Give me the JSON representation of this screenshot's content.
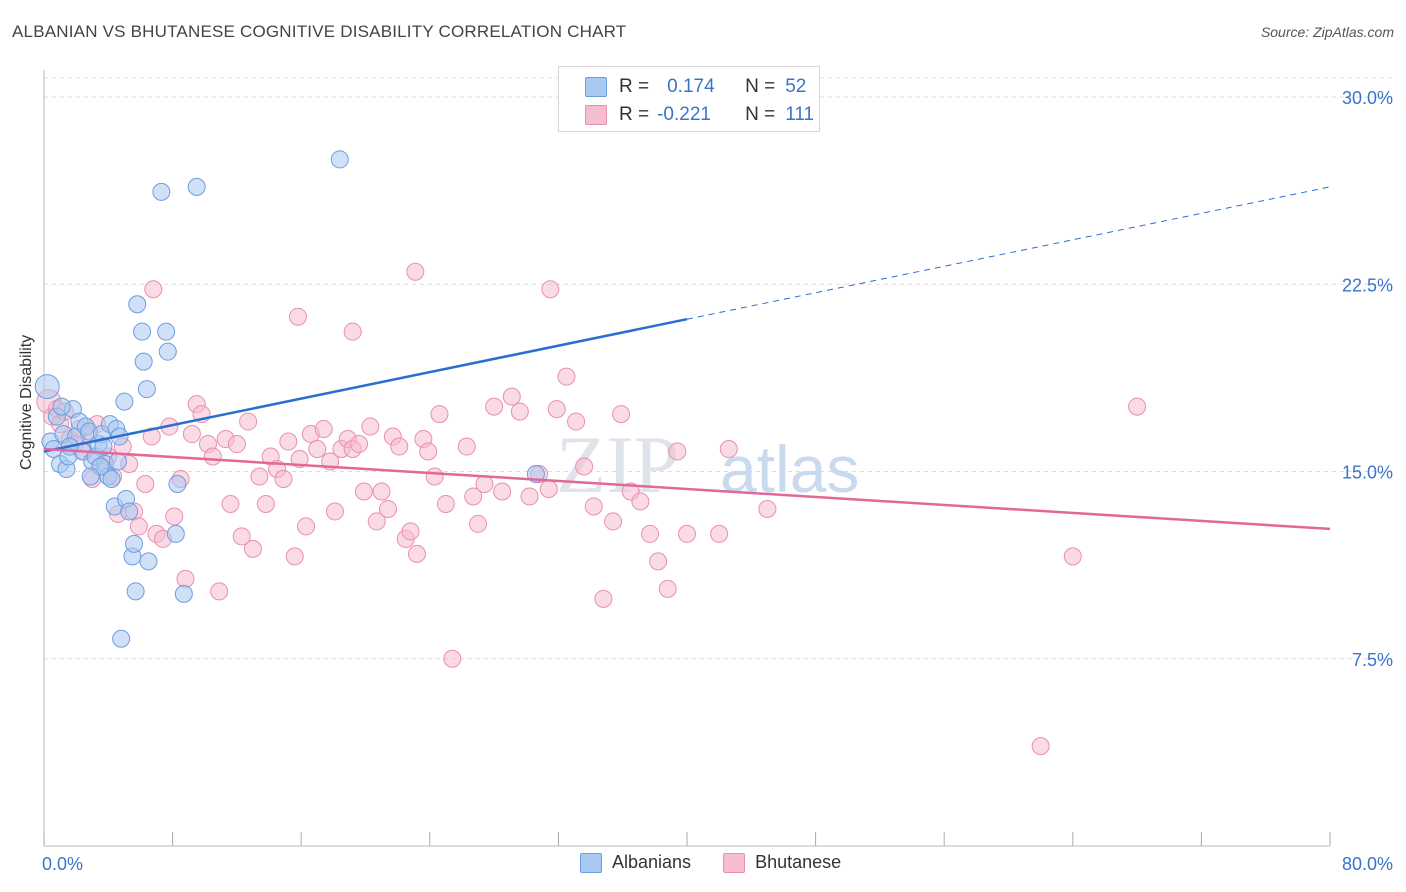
{
  "title": "ALBANIAN VS BHUTANESE COGNITIVE DISABILITY CORRELATION CHART",
  "source": "Source: ZipAtlas.com",
  "watermark": {
    "zip": "ZIP",
    "atlas": "atlas"
  },
  "colors": {
    "blue_fill": "#aac9f0",
    "blue_stroke": "#6d9de0",
    "blue_line": "#2a6fcf",
    "pink_fill": "#f6bcd0",
    "pink_stroke": "#e98fb0",
    "pink_line": "#e2689a",
    "tick_label": "#3a74c9",
    "grid": "#dcdcdc"
  },
  "legend": {
    "rows": [
      {
        "r_label": "R =",
        "r_value": "0.174",
        "n_label": "N =",
        "n_value": "52"
      },
      {
        "r_label": "R =",
        "r_value": "-0.221",
        "n_label": "N =",
        "n_value": "111"
      }
    ]
  },
  "bottom_legend": {
    "albanians": "Albanians",
    "bhutanese": "Bhutanese"
  },
  "chart_data": {
    "type": "scatter",
    "title": "ALBANIAN VS BHUTANESE COGNITIVE DISABILITY CORRELATION CHART",
    "xlabel": "",
    "ylabel": "Cognitive Disability",
    "xlim": [
      0,
      80
    ],
    "ylim": [
      0,
      31
    ],
    "y_ticks": [
      7.5,
      15.0,
      22.5,
      30.0
    ],
    "y_tick_labels": [
      "7.5%",
      "15.0%",
      "22.5%",
      "30.0%"
    ],
    "x_tick_labels": {
      "min": "0.0%",
      "max": "80.0%"
    },
    "x_tick_positions": [
      0,
      8,
      16,
      24,
      32,
      40,
      48,
      56,
      64,
      72,
      80
    ],
    "series": [
      {
        "name": "Albanians",
        "color": "blue",
        "r": 0.174,
        "n": 52,
        "trend": {
          "x_start": 0,
          "y_start": 15.8,
          "x_solid_end": 40,
          "y_solid_end": 21.1,
          "x_end": 80,
          "y_end": 26.4
        },
        "points": [
          [
            0.2,
            18.4
          ],
          [
            0.4,
            16.2
          ],
          [
            0.6,
            15.9
          ],
          [
            0.8,
            17.2
          ],
          [
            1.0,
            15.3
          ],
          [
            1.2,
            16.5
          ],
          [
            1.4,
            15.1
          ],
          [
            1.5,
            15.6
          ],
          [
            1.8,
            17.5
          ],
          [
            2.0,
            16.4
          ],
          [
            2.2,
            17.0
          ],
          [
            2.4,
            15.8
          ],
          [
            2.6,
            16.8
          ],
          [
            2.8,
            16.6
          ],
          [
            3.0,
            15.4
          ],
          [
            3.2,
            15.6
          ],
          [
            3.4,
            16.1
          ],
          [
            3.6,
            16.5
          ],
          [
            3.8,
            15.3
          ],
          [
            4.0,
            14.8
          ],
          [
            4.1,
            16.9
          ],
          [
            4.2,
            14.7
          ],
          [
            4.4,
            13.6
          ],
          [
            4.5,
            16.7
          ],
          [
            4.7,
            16.4
          ],
          [
            4.8,
            8.3
          ],
          [
            5.0,
            17.8
          ],
          [
            5.1,
            13.9
          ],
          [
            5.3,
            13.4
          ],
          [
            5.5,
            11.6
          ],
          [
            5.6,
            12.1
          ],
          [
            5.7,
            10.2
          ],
          [
            5.8,
            21.7
          ],
          [
            6.1,
            20.6
          ],
          [
            6.2,
            19.4
          ],
          [
            6.4,
            18.3
          ],
          [
            6.5,
            11.4
          ],
          [
            7.3,
            26.2
          ],
          [
            7.6,
            20.6
          ],
          [
            7.7,
            19.8
          ],
          [
            8.2,
            12.5
          ],
          [
            8.3,
            14.5
          ],
          [
            8.7,
            10.1
          ],
          [
            9.5,
            26.4
          ],
          [
            18.4,
            27.5
          ],
          [
            30.6,
            14.9
          ],
          [
            1.1,
            17.6
          ],
          [
            3.5,
            15.2
          ],
          [
            2.9,
            14.8
          ],
          [
            1.6,
            16.0
          ],
          [
            4.6,
            15.4
          ],
          [
            3.7,
            16.0
          ]
        ]
      },
      {
        "name": "Bhutanese",
        "color": "pink",
        "r": -0.221,
        "n": 111,
        "trend": {
          "x_start": 0,
          "y_start": 15.9,
          "x_end": 80,
          "y_end": 12.7
        },
        "points": [
          [
            0.3,
            17.8
          ],
          [
            0.5,
            17.2
          ],
          [
            0.8,
            17.5
          ],
          [
            1.0,
            16.9
          ],
          [
            1.3,
            17.4
          ],
          [
            1.6,
            16.3
          ],
          [
            1.9,
            16.1
          ],
          [
            2.2,
            16.7
          ],
          [
            2.5,
            15.8
          ],
          [
            2.8,
            16.5
          ],
          [
            3.0,
            14.7
          ],
          [
            3.3,
            16.9
          ],
          [
            3.6,
            15.2
          ],
          [
            4.0,
            15.6
          ],
          [
            4.3,
            14.8
          ],
          [
            4.6,
            13.3
          ],
          [
            4.9,
            16.0
          ],
          [
            5.3,
            15.3
          ],
          [
            5.6,
            13.4
          ],
          [
            5.9,
            12.8
          ],
          [
            6.3,
            14.5
          ],
          [
            6.7,
            16.4
          ],
          [
            7.0,
            12.5
          ],
          [
            7.4,
            12.3
          ],
          [
            7.8,
            16.8
          ],
          [
            8.1,
            13.2
          ],
          [
            8.5,
            14.7
          ],
          [
            8.8,
            10.7
          ],
          [
            9.2,
            16.5
          ],
          [
            9.5,
            17.7
          ],
          [
            9.8,
            17.3
          ],
          [
            10.2,
            16.1
          ],
          [
            10.5,
            15.6
          ],
          [
            10.9,
            10.2
          ],
          [
            11.3,
            16.3
          ],
          [
            11.6,
            13.7
          ],
          [
            12.0,
            16.1
          ],
          [
            12.3,
            12.4
          ],
          [
            12.7,
            17.0
          ],
          [
            13.0,
            11.9
          ],
          [
            13.4,
            14.8
          ],
          [
            13.8,
            13.7
          ],
          [
            14.1,
            15.6
          ],
          [
            14.5,
            15.1
          ],
          [
            14.9,
            14.7
          ],
          [
            15.2,
            16.2
          ],
          [
            15.6,
            11.6
          ],
          [
            15.9,
            15.5
          ],
          [
            16.3,
            12.8
          ],
          [
            16.6,
            16.5
          ],
          [
            17.0,
            15.9
          ],
          [
            17.4,
            16.7
          ],
          [
            17.8,
            15.4
          ],
          [
            18.1,
            13.4
          ],
          [
            18.5,
            15.9
          ],
          [
            18.9,
            16.3
          ],
          [
            19.2,
            15.9
          ],
          [
            19.6,
            16.1
          ],
          [
            19.9,
            14.2
          ],
          [
            20.3,
            16.8
          ],
          [
            20.7,
            13.0
          ],
          [
            21.0,
            14.2
          ],
          [
            21.4,
            13.5
          ],
          [
            21.7,
            16.4
          ],
          [
            22.1,
            16.0
          ],
          [
            22.5,
            12.3
          ],
          [
            22.8,
            12.6
          ],
          [
            23.2,
            11.7
          ],
          [
            23.6,
            16.3
          ],
          [
            23.9,
            15.8
          ],
          [
            24.3,
            14.8
          ],
          [
            24.6,
            17.3
          ],
          [
            25.0,
            13.7
          ],
          [
            25.4,
            7.5
          ],
          [
            26.3,
            16.0
          ],
          [
            26.7,
            14.0
          ],
          [
            27.0,
            12.9
          ],
          [
            27.4,
            14.5
          ],
          [
            28.0,
            17.6
          ],
          [
            28.5,
            14.2
          ],
          [
            29.1,
            18.0
          ],
          [
            29.6,
            17.4
          ],
          [
            30.2,
            14.0
          ],
          [
            30.8,
            14.9
          ],
          [
            31.4,
            14.3
          ],
          [
            31.9,
            17.5
          ],
          [
            32.5,
            18.8
          ],
          [
            33.1,
            17.0
          ],
          [
            33.6,
            15.2
          ],
          [
            34.2,
            13.6
          ],
          [
            34.8,
            9.9
          ],
          [
            35.4,
            13.0
          ],
          [
            35.9,
            17.3
          ],
          [
            36.5,
            14.2
          ],
          [
            37.1,
            13.8
          ],
          [
            37.7,
            12.5
          ],
          [
            38.2,
            11.4
          ],
          [
            38.8,
            10.3
          ],
          [
            39.4,
            15.8
          ],
          [
            40.0,
            12.5
          ],
          [
            42.0,
            12.5
          ],
          [
            42.6,
            15.9
          ],
          [
            45.0,
            13.5
          ],
          [
            62.0,
            4.0
          ],
          [
            64.0,
            11.6
          ],
          [
            68.0,
            17.6
          ],
          [
            6.8,
            22.3
          ],
          [
            15.8,
            21.2
          ],
          [
            23.1,
            23.0
          ],
          [
            31.5,
            22.3
          ],
          [
            19.2,
            20.6
          ]
        ]
      }
    ]
  }
}
